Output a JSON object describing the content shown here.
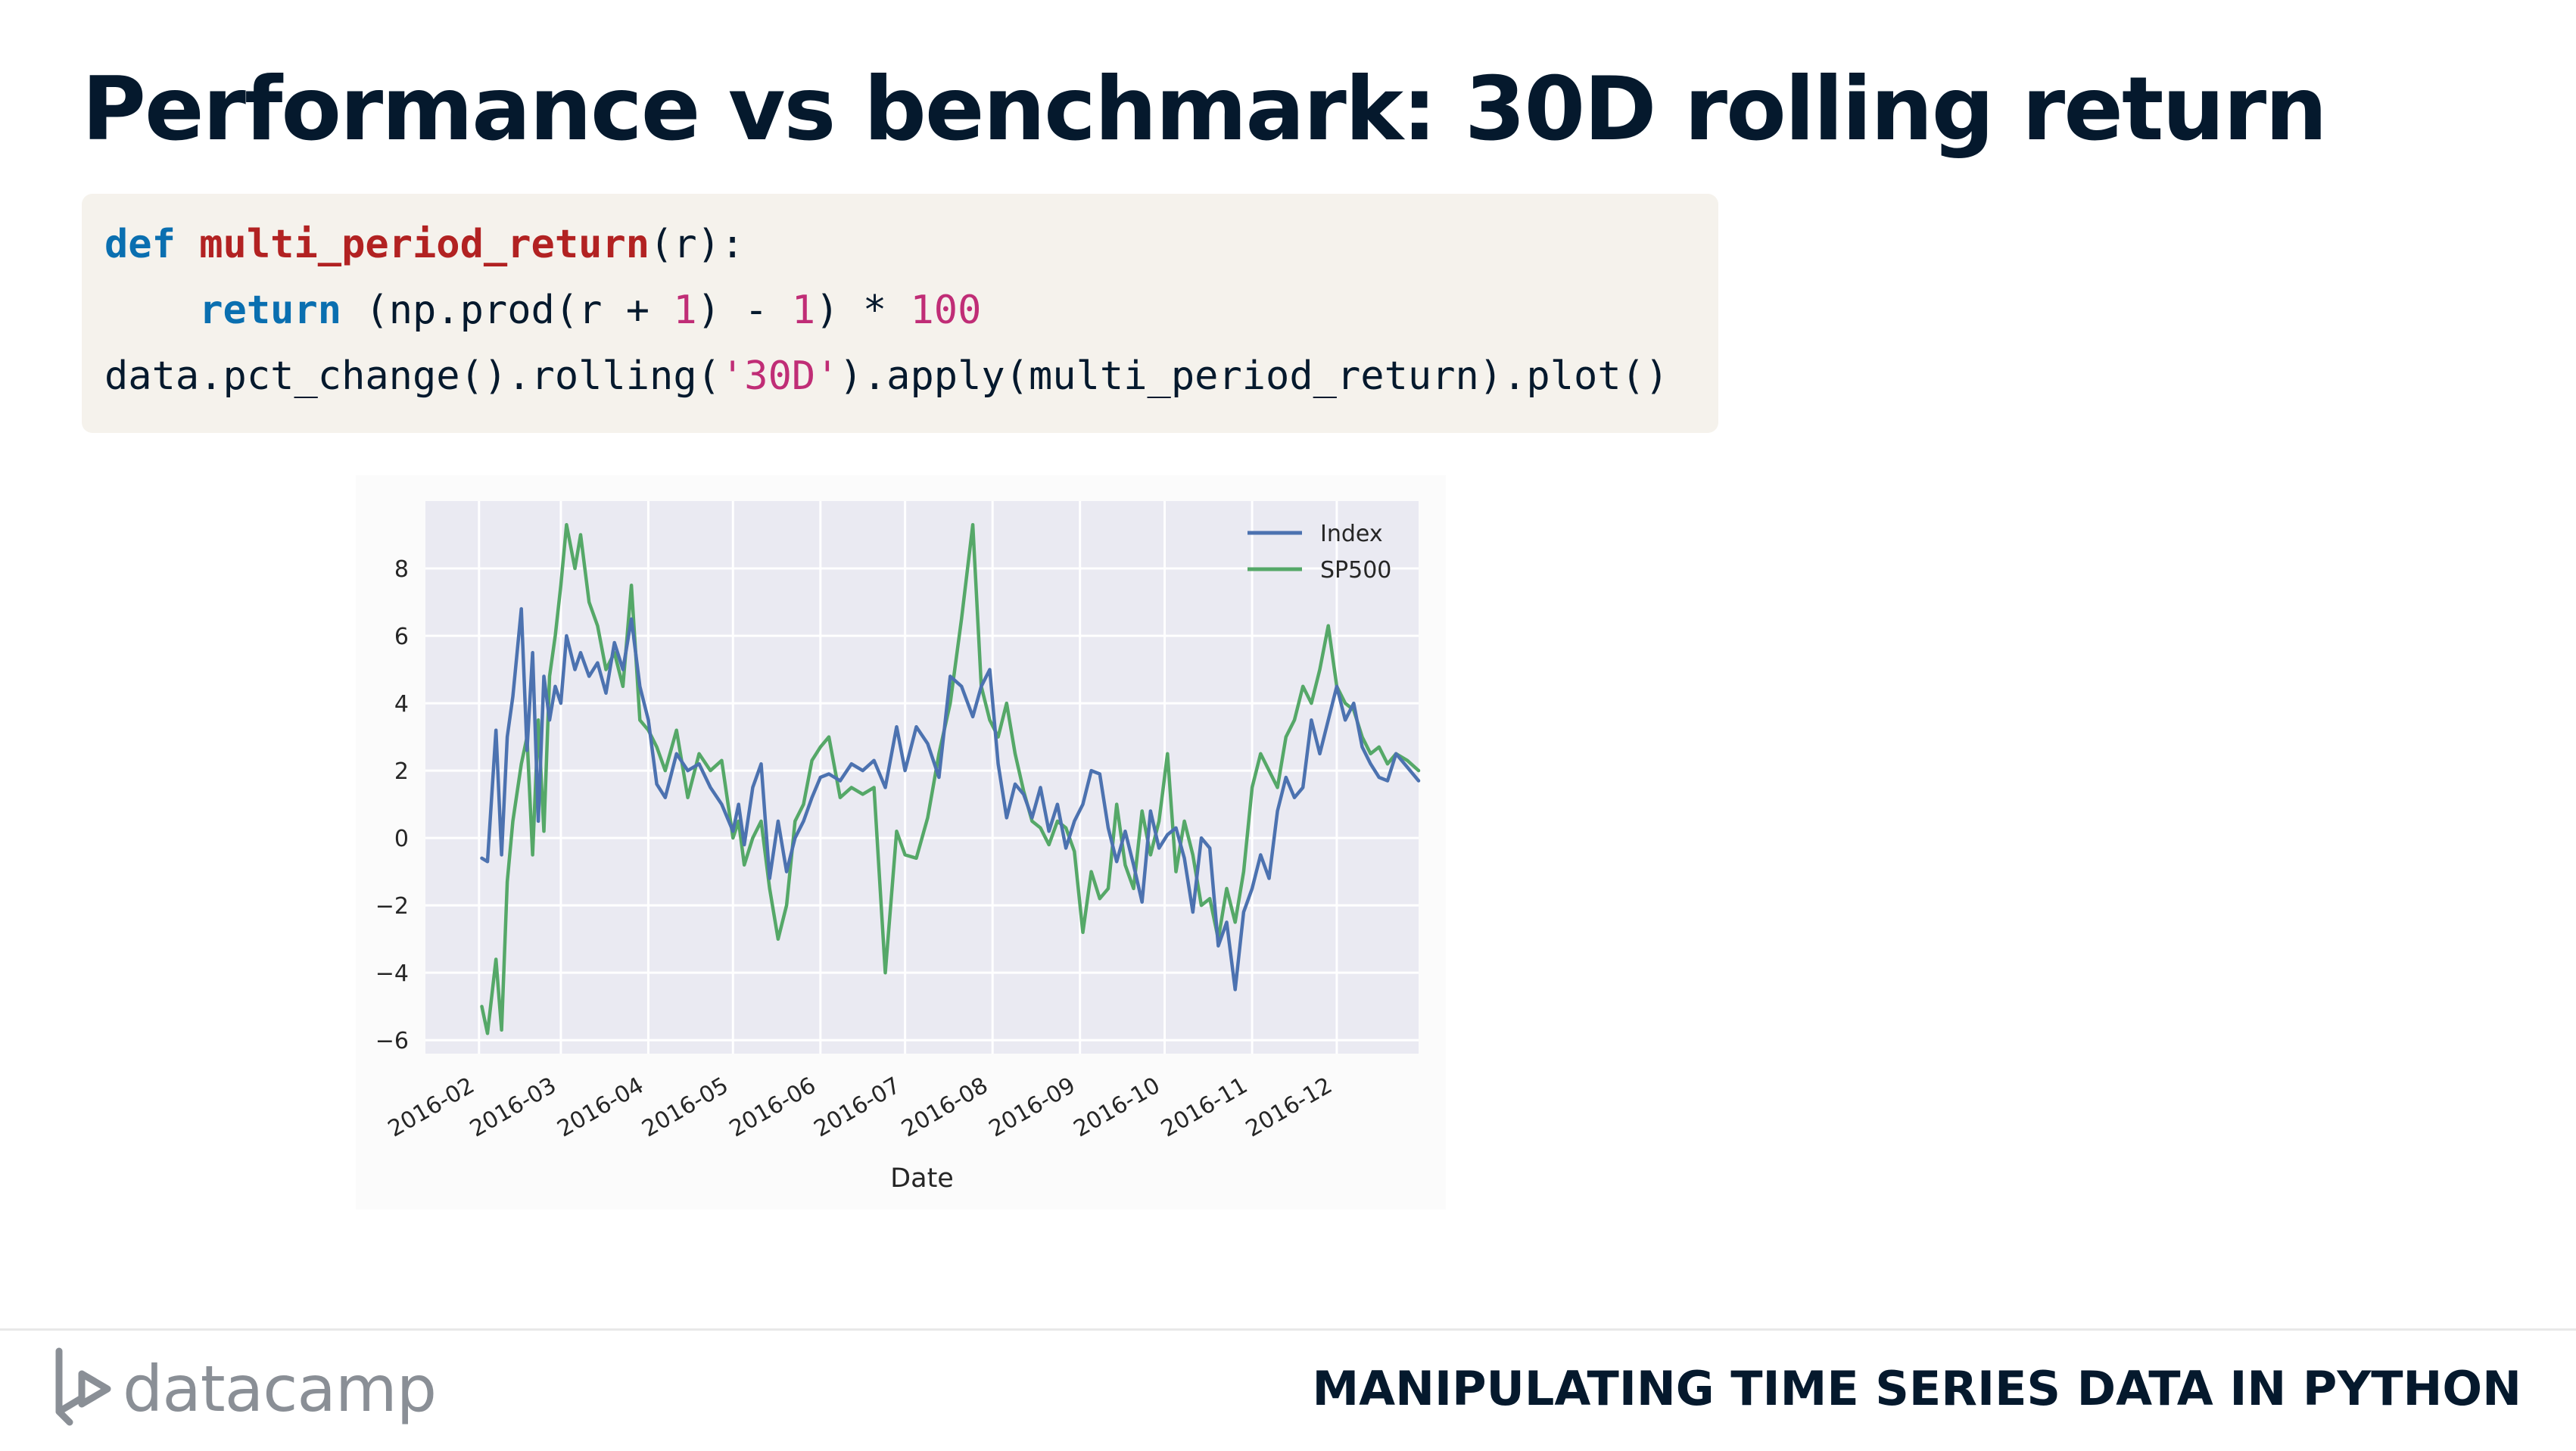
{
  "slide": {
    "title": "Performance vs benchmark: 30D rolling return",
    "course": "MANIPULATING TIME SERIES DATA IN PYTHON",
    "brand": "datacamp",
    "logo_icon": "datacamp-logo-icon"
  },
  "code": {
    "line1": {
      "kw": "def",
      "fn": "multi_period_return",
      "rest": "(r):"
    },
    "line2": {
      "indent": "    ",
      "kw": "return",
      "a": " (np.prod(r + ",
      "n1": "1",
      "b": ") - ",
      "n2": "1",
      "c": ") * ",
      "n3": "100"
    },
    "line3": {
      "a": "data.pct_change().rolling(",
      "str": "'30D'",
      "b": ").apply(multi_period_return).plot()"
    }
  },
  "colors": {
    "index": "#4c72b0",
    "sp500": "#55a868",
    "plot_bg": "#eaeaf2",
    "title": "#05192d"
  },
  "chart_data": {
    "type": "line",
    "xlabel": "Date",
    "ylabel": "",
    "x_range": [
      "2016-01-13",
      "2016-12-30"
    ],
    "ylim": [
      -6.4,
      10.0
    ],
    "grid": true,
    "legend": "top-right",
    "xticks": [
      "2016-02",
      "2016-03",
      "2016-04",
      "2016-05",
      "2016-06",
      "2016-07",
      "2016-08",
      "2016-09",
      "2016-10",
      "2016-11",
      "2016-12"
    ],
    "xtick_dates": [
      "2016-02-01",
      "2016-03-01",
      "2016-04-01",
      "2016-05-01",
      "2016-06-01",
      "2016-07-01",
      "2016-08-01",
      "2016-09-01",
      "2016-10-01",
      "2016-11-01",
      "2016-12-01"
    ],
    "yticks": [
      "−6",
      "−4",
      "−2",
      "0",
      "2",
      "4",
      "6",
      "8"
    ],
    "ytick_values": [
      -6,
      -4,
      -2,
      0,
      2,
      4,
      6,
      8
    ],
    "series": [
      {
        "name": "Index",
        "x": [
          "2016-02-02",
          "2016-02-04",
          "2016-02-07",
          "2016-02-09",
          "2016-02-11",
          "2016-02-13",
          "2016-02-16",
          "2016-02-18",
          "2016-02-20",
          "2016-02-22",
          "2016-02-24",
          "2016-02-26",
          "2016-02-28",
          "2016-03-01",
          "2016-03-03",
          "2016-03-06",
          "2016-03-08",
          "2016-03-11",
          "2016-03-14",
          "2016-03-17",
          "2016-03-20",
          "2016-03-23",
          "2016-03-26",
          "2016-03-29",
          "2016-04-01",
          "2016-04-04",
          "2016-04-07",
          "2016-04-11",
          "2016-04-15",
          "2016-04-19",
          "2016-04-23",
          "2016-04-27",
          "2016-05-01",
          "2016-05-03",
          "2016-05-05",
          "2016-05-08",
          "2016-05-11",
          "2016-05-14",
          "2016-05-17",
          "2016-05-20",
          "2016-05-23",
          "2016-05-26",
          "2016-05-29",
          "2016-06-01",
          "2016-06-04",
          "2016-06-08",
          "2016-06-12",
          "2016-06-16",
          "2016-06-20",
          "2016-06-24",
          "2016-06-28",
          "2016-07-01",
          "2016-07-05",
          "2016-07-09",
          "2016-07-13",
          "2016-07-17",
          "2016-07-21",
          "2016-07-25",
          "2016-07-28",
          "2016-07-31",
          "2016-08-03",
          "2016-08-06",
          "2016-08-09",
          "2016-08-12",
          "2016-08-15",
          "2016-08-18",
          "2016-08-21",
          "2016-08-24",
          "2016-08-27",
          "2016-08-30",
          "2016-09-02",
          "2016-09-05",
          "2016-09-08",
          "2016-09-11",
          "2016-09-14",
          "2016-09-17",
          "2016-09-20",
          "2016-09-23",
          "2016-09-26",
          "2016-09-29",
          "2016-10-02",
          "2016-10-05",
          "2016-10-08",
          "2016-10-11",
          "2016-10-14",
          "2016-10-17",
          "2016-10-20",
          "2016-10-23",
          "2016-10-26",
          "2016-10-29",
          "2016-11-01",
          "2016-11-04",
          "2016-11-07",
          "2016-11-10",
          "2016-11-13",
          "2016-11-16",
          "2016-11-19",
          "2016-11-22",
          "2016-11-25",
          "2016-11-28",
          "2016-12-01",
          "2016-12-04",
          "2016-12-07",
          "2016-12-10",
          "2016-12-13",
          "2016-12-16",
          "2016-12-19",
          "2016-12-22",
          "2016-12-26",
          "2016-12-30"
        ],
        "values": [
          -0.6,
          -0.7,
          3.2,
          -0.5,
          3.0,
          4.2,
          6.8,
          2.6,
          5.5,
          0.5,
          4.8,
          3.5,
          4.5,
          4.0,
          6.0,
          5.0,
          5.5,
          4.8,
          5.2,
          4.3,
          5.8,
          5.0,
          6.5,
          4.5,
          3.5,
          1.6,
          1.2,
          2.5,
          2.0,
          2.2,
          1.5,
          1.0,
          0.2,
          1.0,
          -0.2,
          1.5,
          2.2,
          -1.2,
          0.5,
          -1.0,
          0.0,
          0.5,
          1.2,
          1.8,
          1.9,
          1.7,
          2.2,
          2.0,
          2.3,
          1.5,
          3.3,
          2.0,
          3.3,
          2.8,
          1.8,
          4.8,
          4.5,
          3.6,
          4.5,
          5.0,
          2.2,
          0.6,
          1.6,
          1.3,
          0.6,
          1.5,
          0.2,
          1.0,
          -0.3,
          0.5,
          1.0,
          2.0,
          1.9,
          0.3,
          -0.7,
          0.2,
          -0.8,
          -1.9,
          0.8,
          -0.3,
          0.1,
          0.3,
          -0.6,
          -2.2,
          0.0,
          -0.3,
          -3.2,
          -2.5,
          -4.5,
          -2.2,
          -1.5,
          -0.5,
          -1.2,
          0.8,
          1.8,
          1.2,
          1.5,
          3.5,
          2.5,
          3.5,
          4.5,
          3.5,
          4.0,
          2.7,
          2.2,
          1.8,
          1.7,
          2.5,
          2.1,
          1.7
        ],
        "color": "#4c72b0"
      },
      {
        "name": "SP500",
        "x": [
          "2016-02-02",
          "2016-02-04",
          "2016-02-07",
          "2016-02-09",
          "2016-02-11",
          "2016-02-13",
          "2016-02-16",
          "2016-02-18",
          "2016-02-20",
          "2016-02-22",
          "2016-02-24",
          "2016-02-26",
          "2016-02-28",
          "2016-03-01",
          "2016-03-03",
          "2016-03-06",
          "2016-03-08",
          "2016-03-11",
          "2016-03-14",
          "2016-03-17",
          "2016-03-20",
          "2016-03-23",
          "2016-03-26",
          "2016-03-29",
          "2016-04-01",
          "2016-04-04",
          "2016-04-07",
          "2016-04-11",
          "2016-04-15",
          "2016-04-19",
          "2016-04-23",
          "2016-04-27",
          "2016-05-01",
          "2016-05-03",
          "2016-05-05",
          "2016-05-08",
          "2016-05-11",
          "2016-05-14",
          "2016-05-17",
          "2016-05-20",
          "2016-05-23",
          "2016-05-26",
          "2016-05-29",
          "2016-06-01",
          "2016-06-04",
          "2016-06-08",
          "2016-06-12",
          "2016-06-16",
          "2016-06-20",
          "2016-06-24",
          "2016-06-28",
          "2016-07-01",
          "2016-07-05",
          "2016-07-09",
          "2016-07-13",
          "2016-07-17",
          "2016-07-21",
          "2016-07-25",
          "2016-07-28",
          "2016-07-31",
          "2016-08-03",
          "2016-08-06",
          "2016-08-09",
          "2016-08-12",
          "2016-08-15",
          "2016-08-18",
          "2016-08-21",
          "2016-08-24",
          "2016-08-27",
          "2016-08-30",
          "2016-09-02",
          "2016-09-05",
          "2016-09-08",
          "2016-09-11",
          "2016-09-14",
          "2016-09-17",
          "2016-09-20",
          "2016-09-23",
          "2016-09-26",
          "2016-09-29",
          "2016-10-02",
          "2016-10-05",
          "2016-10-08",
          "2016-10-11",
          "2016-10-14",
          "2016-10-17",
          "2016-10-20",
          "2016-10-23",
          "2016-10-26",
          "2016-10-29",
          "2016-11-01",
          "2016-11-04",
          "2016-11-07",
          "2016-11-10",
          "2016-11-13",
          "2016-11-16",
          "2016-11-19",
          "2016-11-22",
          "2016-11-25",
          "2016-11-28",
          "2016-12-01",
          "2016-12-04",
          "2016-12-07",
          "2016-12-10",
          "2016-12-13",
          "2016-12-16",
          "2016-12-19",
          "2016-12-22",
          "2016-12-26",
          "2016-12-30"
        ],
        "values": [
          -5.0,
          -5.8,
          -3.6,
          -5.7,
          -1.3,
          0.5,
          2.2,
          3.0,
          -0.5,
          3.5,
          0.2,
          4.8,
          6.0,
          7.5,
          9.3,
          8.0,
          9.0,
          7.0,
          6.3,
          5.0,
          5.5,
          4.5,
          7.5,
          3.5,
          3.2,
          2.7,
          2.0,
          3.2,
          1.2,
          2.5,
          2.0,
          2.3,
          0.0,
          0.5,
          -0.8,
          0.0,
          0.5,
          -1.5,
          -3.0,
          -2.0,
          0.5,
          1.0,
          2.3,
          2.7,
          3.0,
          1.2,
          1.5,
          1.3,
          1.5,
          -4.0,
          0.2,
          -0.5,
          -0.6,
          0.6,
          2.5,
          4.0,
          6.5,
          9.3,
          4.5,
          3.5,
          3.0,
          4.0,
          2.5,
          1.4,
          0.5,
          0.3,
          -0.2,
          0.5,
          0.3,
          -0.4,
          -2.8,
          -1.0,
          -1.8,
          -1.5,
          1.0,
          -0.8,
          -1.5,
          0.8,
          -0.5,
          0.5,
          2.5,
          -1.0,
          0.5,
          -0.5,
          -2.0,
          -1.8,
          -3.0,
          -1.5,
          -2.5,
          -1.0,
          1.5,
          2.5,
          2.0,
          1.5,
          3.0,
          3.5,
          4.5,
          4.0,
          5.0,
          6.3,
          4.5,
          4.0,
          3.8,
          3.0,
          2.5,
          2.7,
          2.2,
          2.5,
          2.3,
          2.0
        ],
        "color": "#55a868"
      }
    ]
  }
}
